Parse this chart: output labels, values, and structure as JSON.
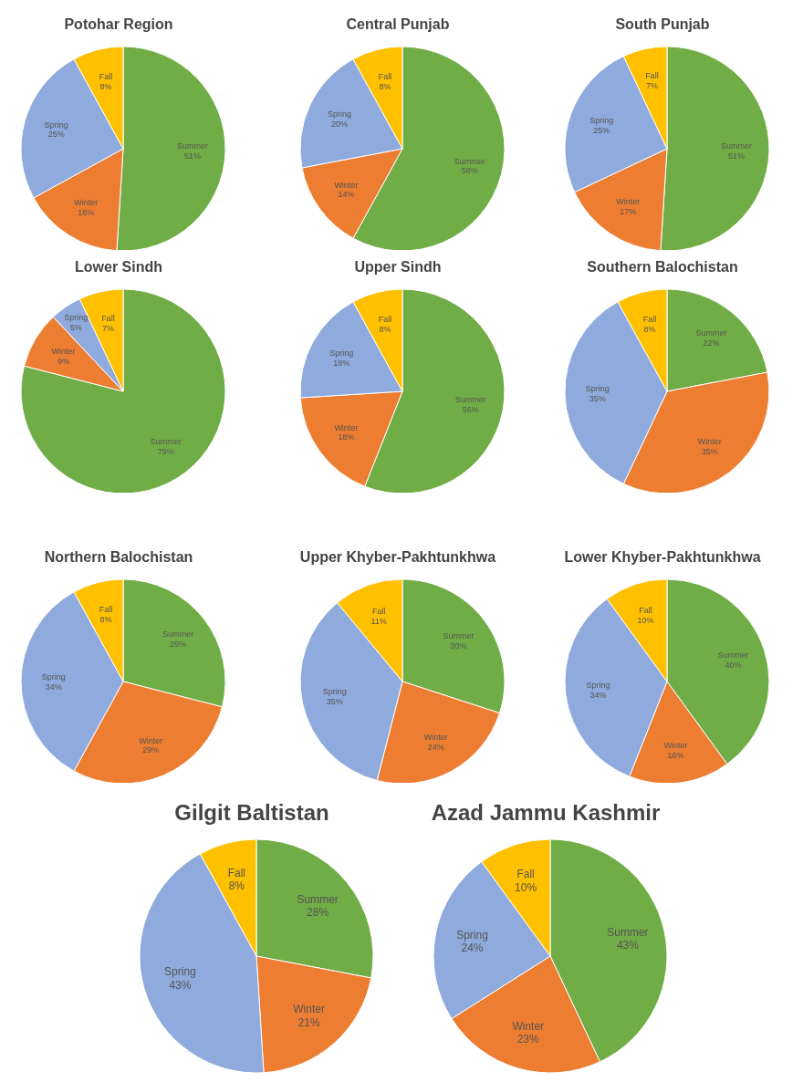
{
  "chart_data": [
    {
      "type": "pie",
      "title": "Potohar Region",
      "categories": [
        "Summer",
        "Winter",
        "Spring",
        "Fall"
      ],
      "values": [
        51,
        16,
        25,
        8
      ],
      "value_labels": [
        "51%",
        "16%",
        "25%",
        "8%"
      ],
      "colors": [
        "#70ad47",
        "#ed7d31",
        "#8faadc",
        "#ffc000"
      ]
    },
    {
      "type": "pie",
      "title": "Central Punjab",
      "categories": [
        "Summer",
        "Winter",
        "Spring",
        "Fall"
      ],
      "values": [
        58,
        14,
        20,
        8
      ],
      "value_labels": [
        "58%",
        "14%",
        "20%",
        "8%"
      ],
      "colors": [
        "#70ad47",
        "#ed7d31",
        "#8faadc",
        "#ffc000"
      ]
    },
    {
      "type": "pie",
      "title": "South Punjab",
      "categories": [
        "Summer",
        "Winter",
        "Spring",
        "Fall"
      ],
      "values": [
        51,
        17,
        25,
        7
      ],
      "value_labels": [
        "51%",
        "17%",
        "25%",
        "7%"
      ],
      "colors": [
        "#70ad47",
        "#ed7d31",
        "#8faadc",
        "#ffc000"
      ]
    },
    {
      "type": "pie",
      "title": "Lower Sindh",
      "categories": [
        "Summer",
        "Winter",
        "Spring",
        "Fall"
      ],
      "values": [
        79,
        9,
        5,
        7
      ],
      "value_labels": [
        "79%",
        "9%",
        "5%",
        "7%"
      ],
      "colors": [
        "#70ad47",
        "#ed7d31",
        "#8faadc",
        "#ffc000"
      ]
    },
    {
      "type": "pie",
      "title": "Upper Sindh",
      "categories": [
        "Summer",
        "Winter",
        "Spring",
        "Fall"
      ],
      "values": [
        56,
        18,
        18,
        8
      ],
      "value_labels": [
        "56%",
        "18%",
        "18%",
        "8%"
      ],
      "colors": [
        "#70ad47",
        "#ed7d31",
        "#8faadc",
        "#ffc000"
      ]
    },
    {
      "type": "pie",
      "title": "Southern Balochistan",
      "categories": [
        "Summer",
        "Winter",
        "Spring",
        "Fall"
      ],
      "values": [
        22,
        35,
        35,
        8
      ],
      "value_labels": [
        "22%",
        "35%",
        "35%",
        "8%"
      ],
      "colors": [
        "#70ad47",
        "#ed7d31",
        "#8faadc",
        "#ffc000"
      ]
    },
    {
      "type": "pie",
      "title": "Northern Balochistan",
      "categories": [
        "Summer",
        "Winter",
        "Spring",
        "Fall"
      ],
      "values": [
        29,
        29,
        34,
        8
      ],
      "value_labels": [
        "29%",
        "29%",
        "34%",
        "8%"
      ],
      "colors": [
        "#70ad47",
        "#ed7d31",
        "#8faadc",
        "#ffc000"
      ]
    },
    {
      "type": "pie",
      "title": "Upper Khyber-Pakhtunkhwa",
      "categories": [
        "Summer",
        "Winter",
        "Spring",
        "Fall"
      ],
      "values": [
        30,
        24,
        35,
        11
      ],
      "value_labels": [
        "30%",
        "24%",
        "35%",
        "11%"
      ],
      "colors": [
        "#70ad47",
        "#ed7d31",
        "#8faadc",
        "#ffc000"
      ]
    },
    {
      "type": "pie",
      "title": "Lower Khyber-Pakhtunkhwa",
      "categories": [
        "Summer",
        "Winter",
        "Spring",
        "Fall"
      ],
      "values": [
        40,
        16,
        34,
        10
      ],
      "value_labels": [
        "40%",
        "16%",
        "34%",
        "10%"
      ],
      "colors": [
        "#70ad47",
        "#ed7d31",
        "#8faadc",
        "#ffc000"
      ]
    },
    {
      "type": "pie",
      "title": "Gilgit Baltistan",
      "categories": [
        "Summer",
        "Winter",
        "Spring",
        "Fall"
      ],
      "values": [
        28,
        21,
        43,
        8
      ],
      "value_labels": [
        "28%",
        "21%",
        "43%",
        "8%"
      ],
      "colors": [
        "#70ad47",
        "#ed7d31",
        "#8faadc",
        "#ffc000"
      ]
    },
    {
      "type": "pie",
      "title": "Azad Jammu Kashmir",
      "categories": [
        "Summer",
        "Winter",
        "Spring",
        "Fall"
      ],
      "values": [
        43,
        23,
        24,
        10
      ],
      "value_labels": [
        "43%",
        "23%",
        "24%",
        "10%"
      ],
      "colors": [
        "#70ad47",
        "#ed7d31",
        "#8faadc",
        "#ffc000"
      ]
    }
  ]
}
